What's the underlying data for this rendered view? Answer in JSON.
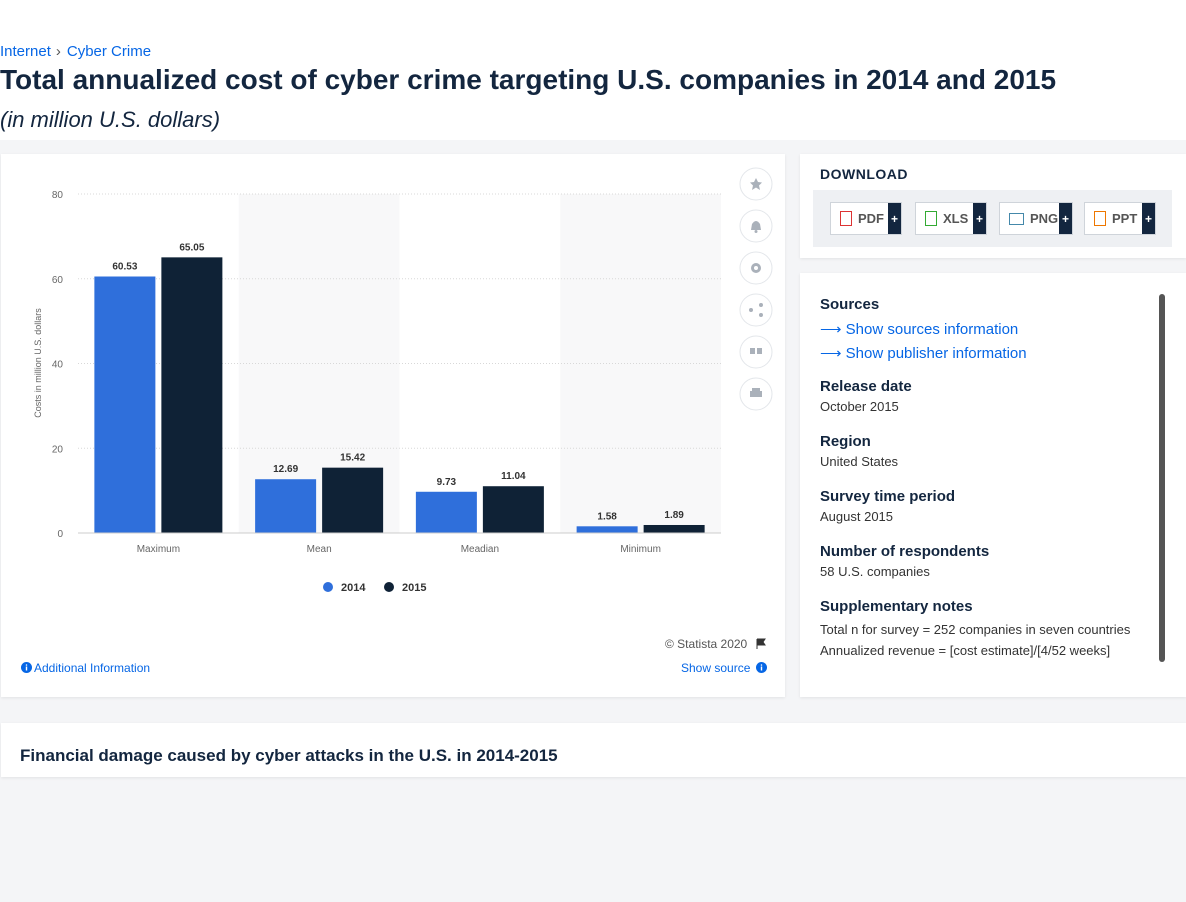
{
  "breadcrumb": {
    "items": [
      "Internet",
      "Cyber Crime"
    ],
    "separator": "›"
  },
  "header": {
    "title": "Total annualized cost of cyber crime targeting U.S. companies in 2014 and 2015",
    "subtitle": "(in million U.S. dollars)"
  },
  "chart_data": {
    "type": "bar",
    "y_label": "Costs in million U.S. dollars",
    "categories": [
      "Maximum",
      "Mean",
      "Meadian",
      "Minimum"
    ],
    "series": [
      {
        "name": "2014",
        "color": "#2f6fdb",
        "values": [
          60.53,
          12.69,
          9.73,
          1.58
        ]
      },
      {
        "name": "2015",
        "color": "#0f2236",
        "values": [
          65.05,
          15.42,
          11.04,
          1.89
        ]
      }
    ],
    "ylim": [
      0,
      80
    ],
    "yticks": [
      0,
      20,
      40,
      60,
      80
    ],
    "grid": true
  },
  "chart_footer": {
    "copyright": "© Statista 2020",
    "show_source": "Show source",
    "additional_information": "Additional Information"
  },
  "download": {
    "title": "DOWNLOAD",
    "buttons": [
      "PDF",
      "XLS",
      "PNG",
      "PPT"
    ],
    "plus": "+"
  },
  "info": {
    "sources_title": "Sources",
    "show_sources": "Show sources information",
    "show_publisher": "Show publisher information",
    "fields": [
      {
        "label": "Release date",
        "value": "October 2015"
      },
      {
        "label": "Region",
        "value": "United States"
      },
      {
        "label": "Survey time period",
        "value": "August 2015"
      },
      {
        "label": "Number of respondents",
        "value": "58 U.S. companies"
      },
      {
        "label": "Supplementary notes",
        "value": "Total n for survey = 252 companies in seven countries"
      }
    ],
    "extra_note": "Annualized revenue = [cost estimate]/[4/52 weeks]"
  },
  "related": {
    "title": "Financial damage caused by cyber attacks in the U.S. in 2014-2015"
  }
}
